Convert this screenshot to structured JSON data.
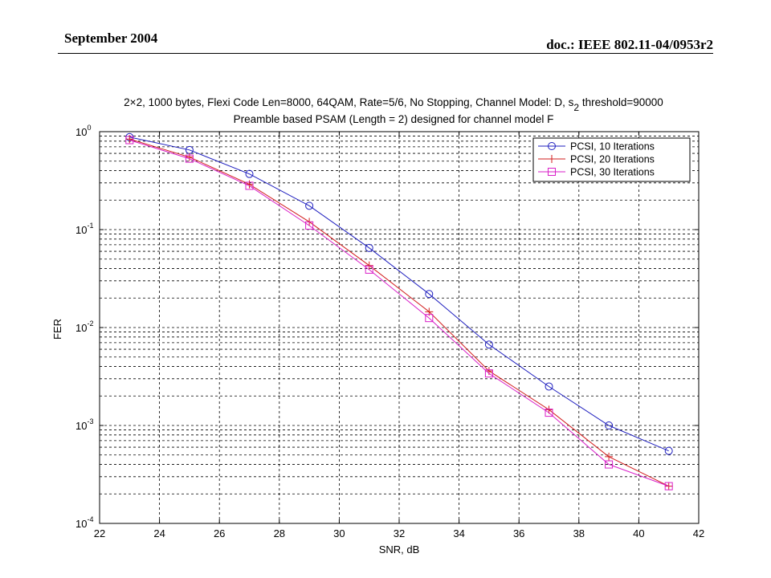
{
  "header": {
    "date": "September 2004",
    "doc_id": "doc.: IEEE 802.11-04/0953r2"
  },
  "chart_data": {
    "type": "line",
    "title_line1": "2×2, 1000 bytes, Flexi Code Len=8000, 64QAM, Rate=5/6, No Stopping, Channel Model: D, s",
    "title_subscript": "2",
    "title_line1_suffix": " threshold=90000",
    "title_line2": "Preamble based PSAM (Length = 2) designed for channel model F",
    "xlabel": "SNR, dB",
    "ylabel": "FER",
    "xlim": [
      22,
      42
    ],
    "ylim": [
      0.0001,
      1
    ],
    "yscale": "log",
    "grid": true,
    "legend_position": "top-right",
    "x_ticks": [
      "22",
      "24",
      "26",
      "28",
      "30",
      "32",
      "34",
      "36",
      "38",
      "40",
      "42"
    ],
    "y_ticks": [
      {
        "base": "10",
        "exp": "0"
      },
      {
        "base": "10",
        "exp": "-1"
      },
      {
        "base": "10",
        "exp": "-2"
      },
      {
        "base": "10",
        "exp": "-3"
      },
      {
        "base": "10",
        "exp": "-4"
      }
    ],
    "x": [
      23,
      25,
      27,
      29,
      31,
      33,
      35,
      37,
      39,
      41
    ],
    "series": [
      {
        "name": "PCSI, 10 Iterations",
        "color": "#1f1fbf",
        "marker": "circle",
        "values": [
          0.88,
          0.65,
          0.37,
          0.175,
          0.065,
          0.022,
          0.0067,
          0.0025,
          0.001,
          0.00055
        ]
      },
      {
        "name": "PCSI, 20 Iterations",
        "color": "#d21e1e",
        "marker": "plus",
        "values": [
          0.84,
          0.55,
          0.29,
          0.12,
          0.043,
          0.0145,
          0.0036,
          0.00145,
          0.00048,
          0.00024
        ]
      },
      {
        "name": "PCSI, 30 Iterations",
        "color": "#d91ec8",
        "marker": "square",
        "values": [
          0.82,
          0.53,
          0.28,
          0.11,
          0.039,
          0.0125,
          0.0034,
          0.00135,
          0.0004,
          0.00024
        ]
      }
    ]
  }
}
